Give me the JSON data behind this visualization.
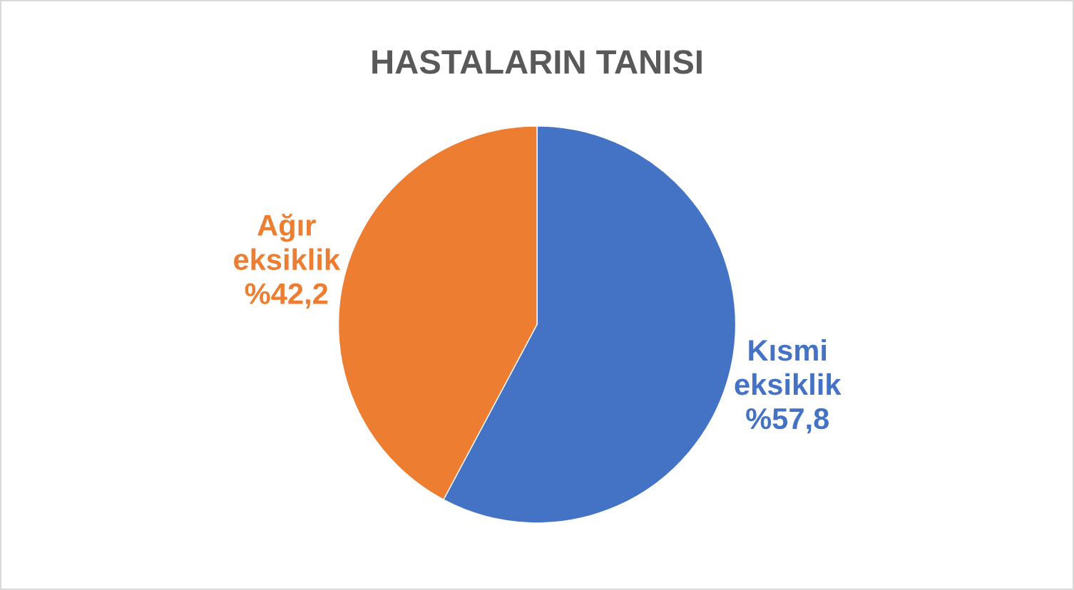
{
  "chart_data": {
    "type": "pie",
    "title": "HASTALARIN TANISI",
    "categories": [
      "Kısmi eksiklik",
      "Ağır eksiklik"
    ],
    "values": [
      57.8,
      42.2
    ],
    "colors": [
      "#4472c4",
      "#ed7d31"
    ],
    "value_labels": [
      "%57,8",
      "%42,2"
    ],
    "legend": false
  }
}
